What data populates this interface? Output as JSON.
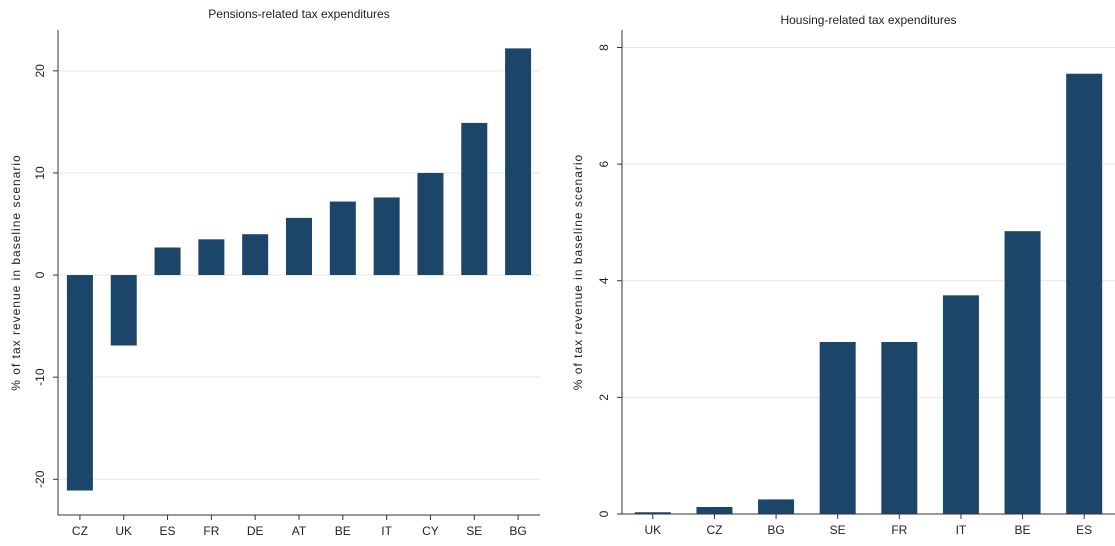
{
  "colors": {
    "bar": "#1c456a",
    "grid": "#e3e7ea",
    "axis": "#333333"
  },
  "chart_data": [
    {
      "type": "bar",
      "title": "Pensions-related tax expenditures",
      "ylabel": "% of tax revenue in baseline scenario",
      "xlabel": "",
      "categories": [
        "CZ",
        "UK",
        "ES",
        "FR",
        "DE",
        "AT",
        "BE",
        "IT",
        "CY",
        "SE",
        "BG"
      ],
      "values": [
        -21.1,
        -6.9,
        2.7,
        3.5,
        4.0,
        5.6,
        7.2,
        7.6,
        10.0,
        14.9,
        22.2
      ],
      "yticks": [
        -20,
        -10,
        0,
        10,
        20
      ],
      "ytick_labels": [
        "-20",
        "-10",
        "0",
        "10",
        "20"
      ],
      "ylim": [
        -23.5,
        24
      ],
      "grid": true
    },
    {
      "type": "bar",
      "title": "Housing-related tax expenditures",
      "ylabel": "% of tax revenue in baseline scenario",
      "xlabel": "",
      "categories": [
        "UK",
        "CZ",
        "BG",
        "SE",
        "FR",
        "IT",
        "BE",
        "ES"
      ],
      "values": [
        0.03,
        0.12,
        0.25,
        2.95,
        2.95,
        3.75,
        4.85,
        7.55
      ],
      "yticks": [
        0,
        2,
        4,
        6,
        8
      ],
      "ytick_labels": [
        "0",
        "2",
        "4",
        "6",
        "8"
      ],
      "ylim": [
        0,
        8.3
      ],
      "grid": true
    }
  ]
}
